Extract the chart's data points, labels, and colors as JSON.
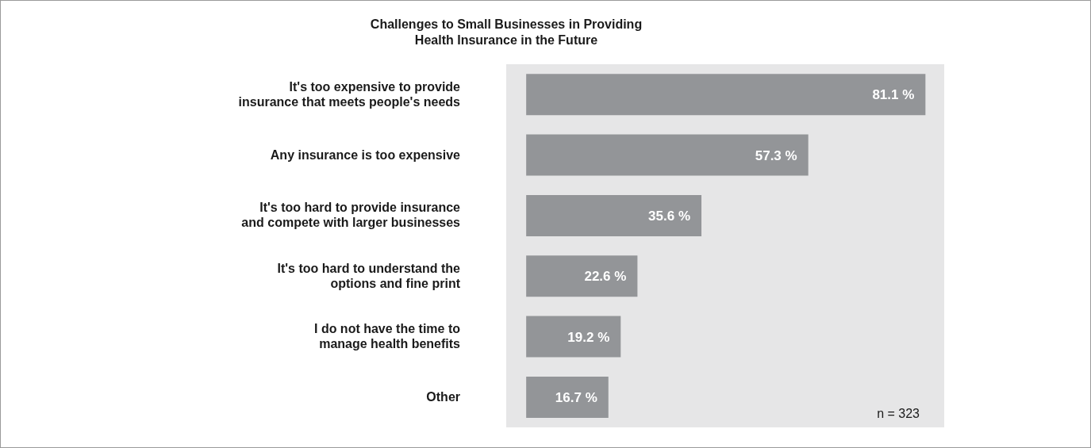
{
  "chart_data": {
    "type": "bar",
    "orientation": "horizontal",
    "title": "Challenges to Small Businesses in Providing\nHealth Insurance in the Future",
    "categories": [
      "It's too expensive to provide\ninsurance that meets people's needs",
      "Any insurance is too expensive",
      "It's too hard to provide insurance\nand compete with larger businesses",
      "It's too hard to understand the\noptions and fine print",
      "I do not have the time to\nmanage health benefits",
      "Other"
    ],
    "values": [
      81.1,
      57.3,
      35.6,
      22.6,
      19.2,
      16.7
    ],
    "value_labels": [
      "81.1 %",
      "57.3 %",
      "35.6 %",
      "22.6 %",
      "19.2 %",
      "16.7 %"
    ],
    "color": "#939598",
    "annotations": [
      "n = 323"
    ]
  }
}
